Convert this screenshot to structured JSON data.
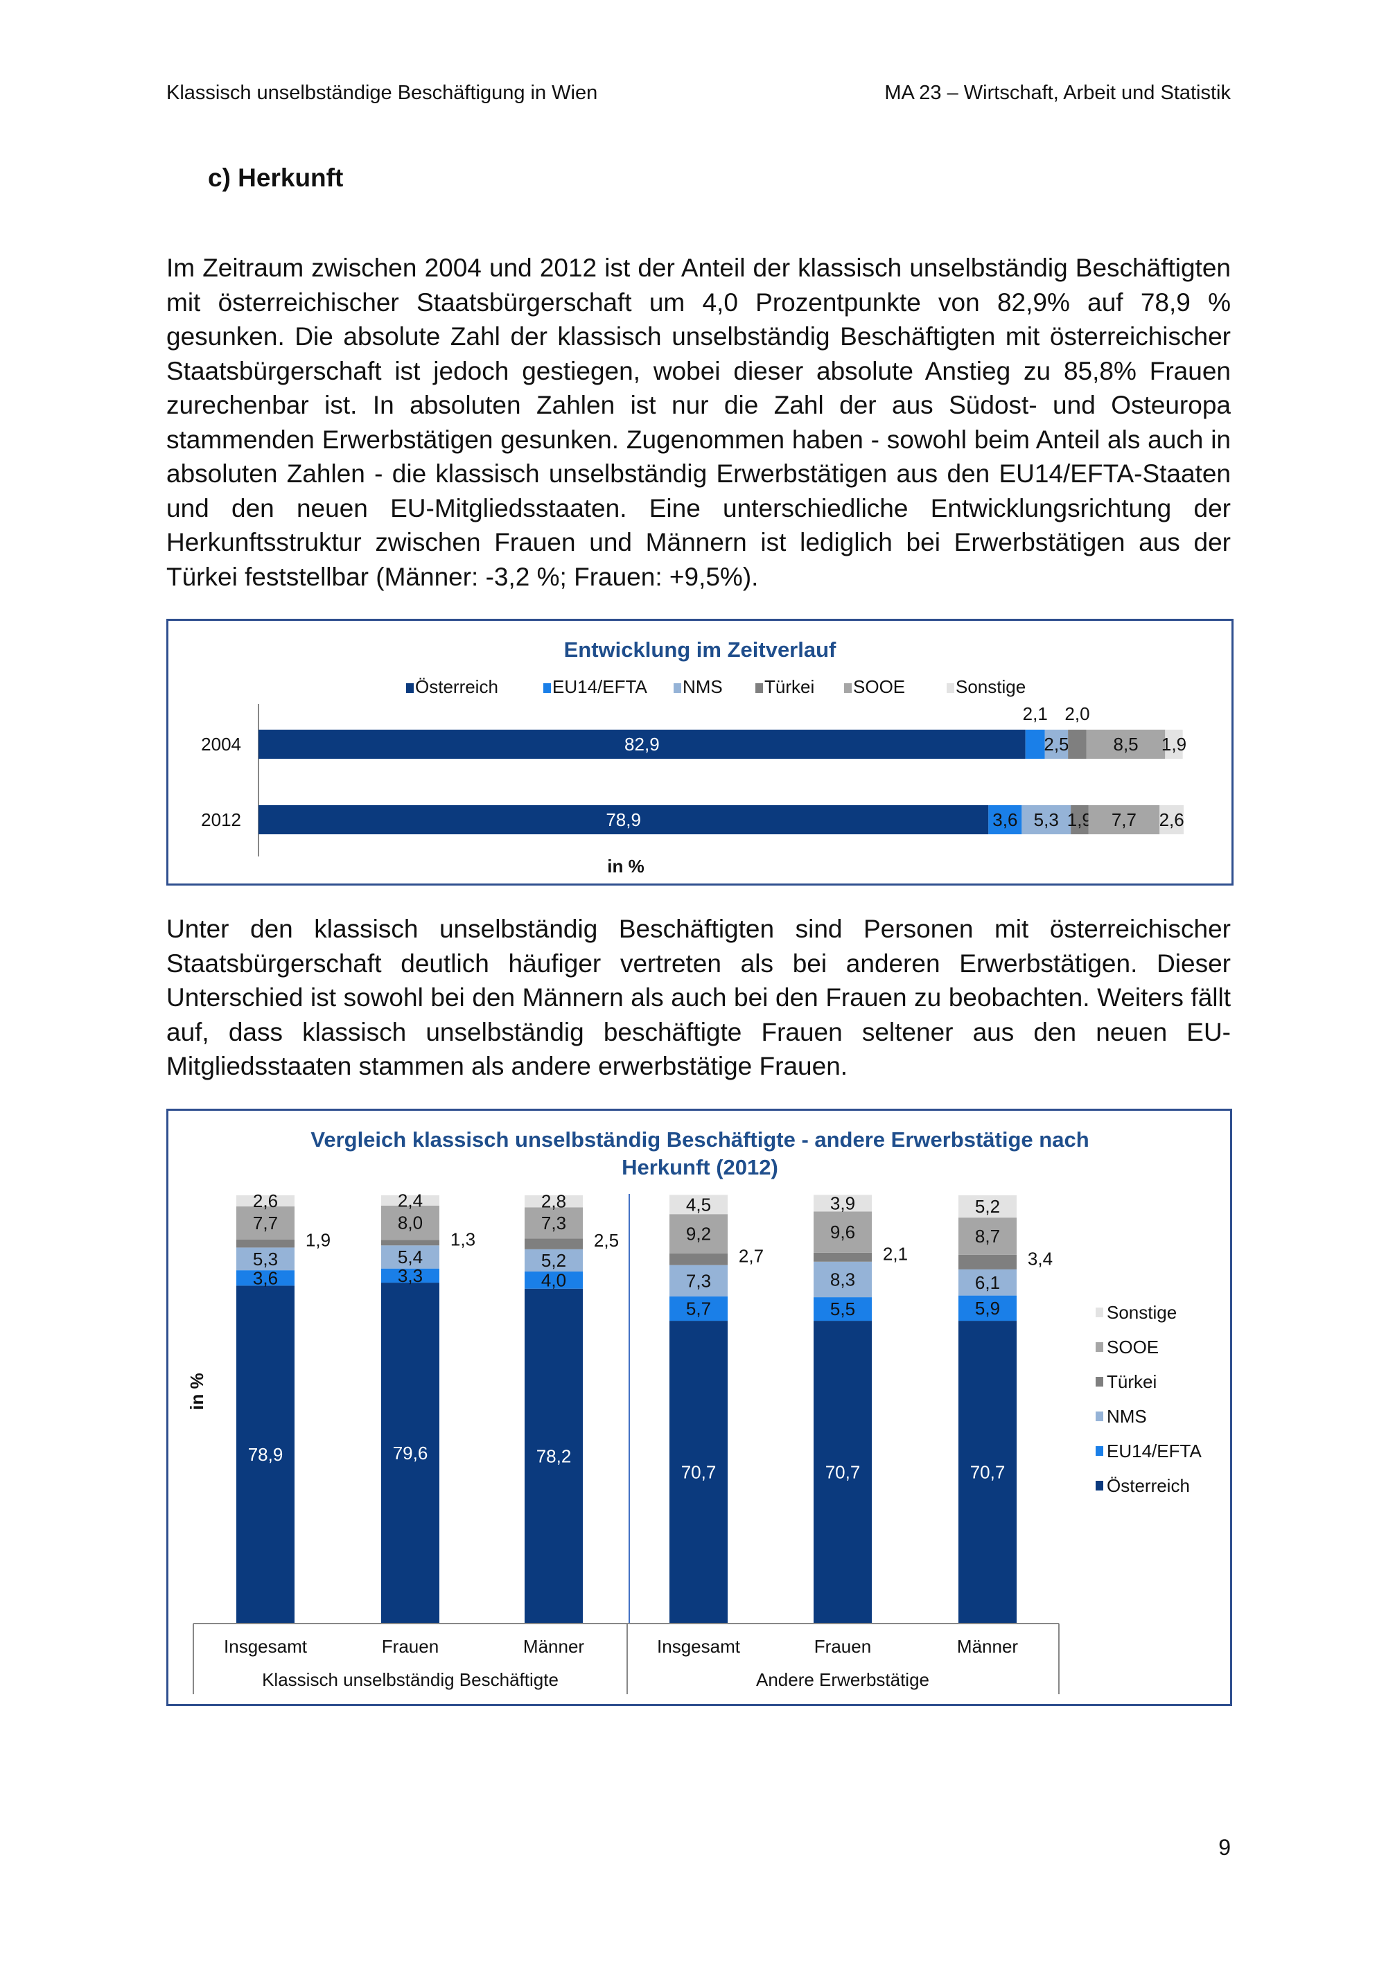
{
  "header": {
    "left": "Klassisch unselbständige Beschäftigung in Wien",
    "right": "MA 23 – Wirtschaft, Arbeit und Statistik"
  },
  "section_title": "c)  Herkunft",
  "paragraphs": [
    "Im Zeitraum zwischen 2004 und 2012 ist der Anteil der klassisch unselbständig Beschäftigten mit österreichischer Staatsbürgerschaft um 4,0 Prozentpunkte von 82,9% auf 78,9 % gesunken. Die absolute Zahl der klassisch unselbständig Beschäftigten mit österreichischer Staatsbürgerschaft ist jedoch gestiegen, wobei dieser absolute Anstieg zu 85,8% Frauen zurechenbar ist. In absoluten Zahlen ist nur die Zahl der aus Südost- und Osteuropa stammenden Erwerbstätigen gesunken. Zugenommen haben - sowohl beim Anteil als auch in absoluten Zahlen - die klassisch unselbständig Erwerbstätigen aus den EU14/EFTA-Staaten und den neuen EU-Mitgliedsstaaten. Eine unterschiedliche Entwicklungsrichtung der Herkunftsstruktur zwischen Frauen und Männern ist lediglich bei Erwerbstätigen aus der Türkei feststellbar (Männer: -3,2 %; Frauen: +9,5%).",
    "Unter den klassisch unselbständig Beschäftigten sind Personen mit österreichischer Staatsbürgerschaft deutlich häufiger vertreten als bei anderen Erwerbstätigen. Dieser Unterschied ist sowohl bei den Männern als auch bei den Frauen zu beobachten. Weiters fällt auf, dass klassisch unselbständig beschäftigte Frauen seltener aus den neuen EU-Mitgliedsstaaten stammen als andere erwerbstätige Frauen."
  ],
  "page_number": "9",
  "chart_data": [
    {
      "type": "bar",
      "orientation": "horizontal",
      "stacked": true,
      "title": "Entwicklung im Zeitverlauf",
      "xlabel": "in %",
      "categories": [
        "2004",
        "2012"
      ],
      "legend_position": "top",
      "series": [
        {
          "name": "Österreich",
          "color": "#0b3a7e",
          "values": [
            82.9,
            78.9
          ]
        },
        {
          "name": "EU14/EFTA",
          "color": "#1a7fe8",
          "values": [
            2.1,
            3.6
          ]
        },
        {
          "name": "NMS",
          "color": "#95b3d7",
          "values": [
            2.5,
            5.3
          ]
        },
        {
          "name": "Türkei",
          "color": "#7f7f7f",
          "values": [
            2.0,
            1.9
          ]
        },
        {
          "name": "SOOE",
          "color": "#a6a6a6",
          "values": [
            8.5,
            7.7
          ]
        },
        {
          "name": "Sonstige",
          "color": "#e3e3e3",
          "values": [
            1.9,
            2.6
          ]
        }
      ]
    },
    {
      "type": "bar",
      "orientation": "vertical",
      "stacked": true,
      "title": "Vergleich klassisch unselbständig Beschäftigte - andere Erwerbstätige nach Herkunft (2012)",
      "ylabel": "in %",
      "categories": [
        "Insgesamt",
        "Frauen",
        "Männer",
        "Insgesamt",
        "Frauen",
        "Männer"
      ],
      "groups": [
        "Klassisch unselbständig Beschäftigte",
        "Andere Erwerbstätige"
      ],
      "legend_position": "right",
      "series": [
        {
          "name": "Österreich",
          "color": "#0b3a7e",
          "values": [
            78.9,
            79.6,
            78.2,
            70.7,
            70.7,
            70.7
          ]
        },
        {
          "name": "EU14/EFTA",
          "color": "#1a7fe8",
          "values": [
            3.6,
            3.3,
            4.0,
            5.7,
            5.5,
            5.9
          ]
        },
        {
          "name": "NMS",
          "color": "#95b3d7",
          "values": [
            5.3,
            5.4,
            5.2,
            7.3,
            8.3,
            6.1
          ]
        },
        {
          "name": "Türkei",
          "color": "#7f7f7f",
          "values": [
            1.9,
            1.3,
            2.5,
            2.7,
            2.1,
            3.4
          ]
        },
        {
          "name": "SOOE",
          "color": "#a6a6a6",
          "values": [
            7.7,
            8.0,
            7.3,
            9.2,
            9.6,
            8.7
          ]
        },
        {
          "name": "Sonstige",
          "color": "#e3e3e3",
          "values": [
            2.6,
            2.4,
            2.8,
            4.5,
            3.9,
            5.2
          ]
        }
      ]
    }
  ]
}
